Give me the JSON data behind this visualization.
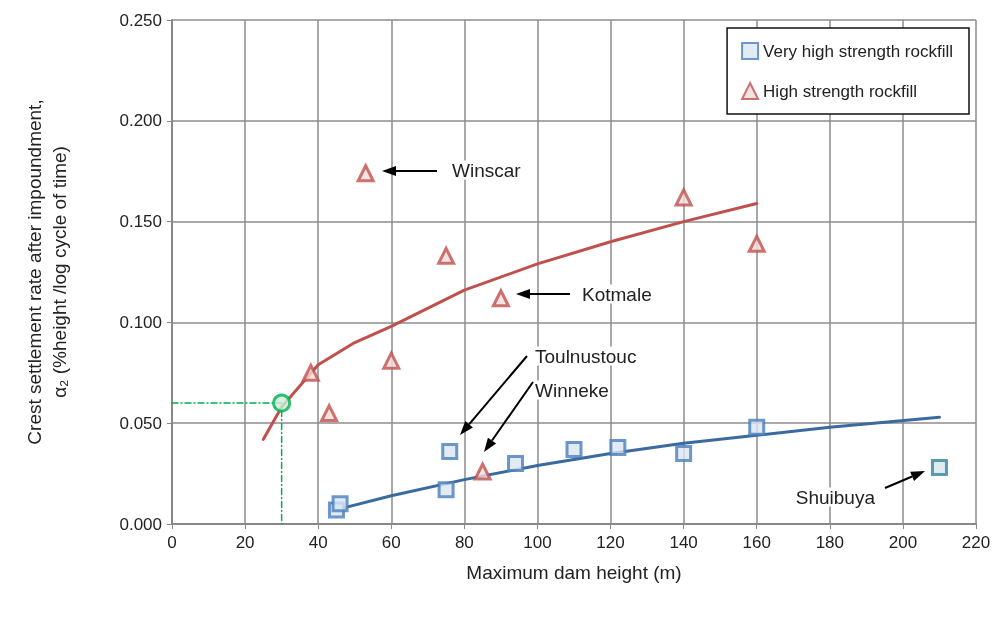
{
  "chart_data": {
    "type": "scatter",
    "xlabel": "Maximum dam height (m)",
    "ylabel": "Crest settlement rate after impoundment,\nα₂ (%height /log cycle of time)",
    "xlim": [
      0,
      220
    ],
    "xticks": [
      0,
      20,
      40,
      60,
      80,
      100,
      120,
      140,
      160,
      180,
      200,
      220
    ],
    "ylim": [
      0,
      0.25
    ],
    "yticks": [
      {
        "value": 0,
        "label": "0.000"
      },
      {
        "value": 0.05,
        "label": "0.050"
      },
      {
        "value": 0.1,
        "label": "0.100"
      },
      {
        "value": 0.15,
        "label": "0.150"
      },
      {
        "value": 0.2,
        "label": "0.200"
      },
      {
        "value": 0.25,
        "label": "0.250"
      }
    ],
    "grid": true,
    "legend": "top right",
    "series": [
      {
        "name": "Very high strength rockfill",
        "type": "scatter",
        "marker": "square",
        "color": "#4a7ebb",
        "x": [
          45,
          46,
          75,
          76,
          94,
          110,
          122,
          140,
          160,
          210
        ],
        "values": [
          0.007,
          0.01,
          0.017,
          0.036,
          0.03,
          0.037,
          0.038,
          0.035,
          0.048,
          0.028
        ],
        "colors": [
          "#4a7ebb",
          "#4a7ebb",
          "#4a7ebb",
          "#4a7ebb",
          "#4a7ebb",
          "#4a7ebb",
          "#4a7ebb",
          "#4a7ebb",
          "#4a7ebb",
          "#31859c"
        ]
      },
      {
        "name": "High strength rockfill",
        "type": "scatter",
        "marker": "triangle",
        "color": "#c0504d",
        "x": [
          38,
          43,
          53,
          60,
          75,
          85,
          90,
          140,
          160
        ],
        "values": [
          0.075,
          0.055,
          0.174,
          0.081,
          0.133,
          0.026,
          0.112,
          0.162,
          0.139
        ]
      },
      {
        "type": "line",
        "marker": "none",
        "color": "#c0504d",
        "x": [
          25,
          30,
          40,
          50,
          60,
          80,
          100,
          120,
          140,
          160
        ],
        "values": [
          0.042,
          0.058,
          0.079,
          0.09,
          0.098,
          0.116,
          0.129,
          0.14,
          0.15,
          0.159
        ]
      },
      {
        "type": "line",
        "marker": "none",
        "color": "#3a6a9e",
        "x": [
          47,
          60,
          80,
          100,
          120,
          140,
          160,
          180,
          210
        ],
        "values": [
          0.008,
          0.014,
          0.022,
          0.029,
          0.035,
          0.04,
          0.044,
          0.048,
          0.053
        ]
      },
      {
        "type": "line",
        "marker": "none",
        "line_style": "dashed",
        "color": "#00b050",
        "x": [
          0,
          30,
          30
        ],
        "values": [
          0.06,
          0.06,
          0
        ]
      },
      {
        "type": "scatter",
        "marker": "circle",
        "color": "#00b050",
        "x": [
          30
        ],
        "values": [
          0.06
        ]
      }
    ],
    "annotations": [
      "Winscar",
      "Kotmale",
      "Toulnustouc",
      "Winneke",
      "Shuibuya"
    ]
  }
}
